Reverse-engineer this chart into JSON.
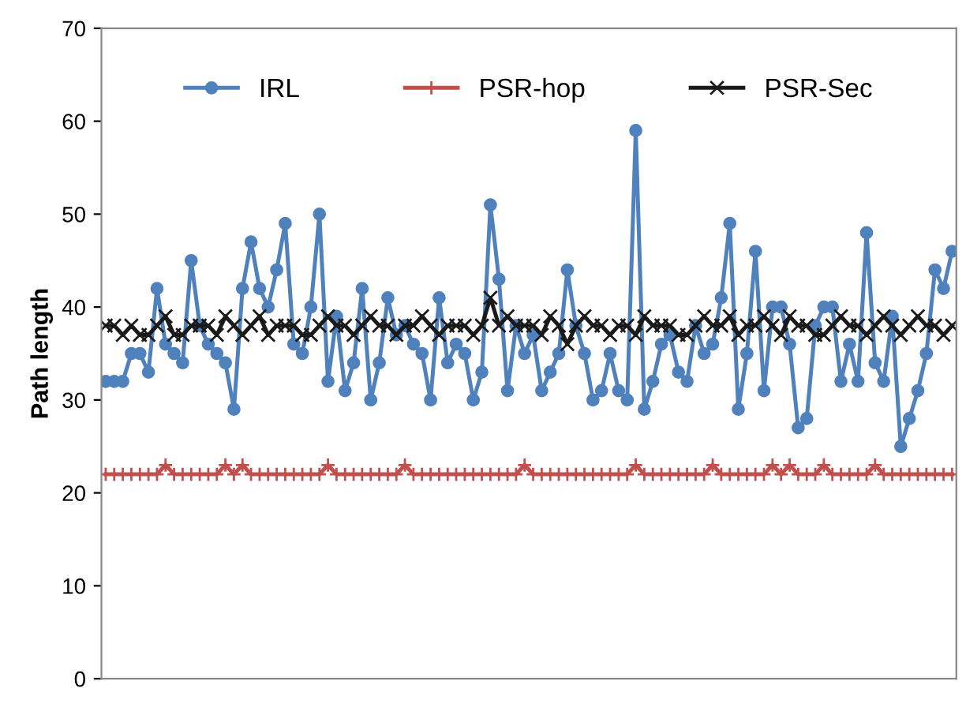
{
  "chart_data": {
    "type": "line",
    "ylabel": "Path length",
    "categories": [
      null,
      null,
      null,
      null,
      null,
      null,
      null,
      null,
      null,
      null,
      null,
      null,
      null,
      null,
      null,
      null,
      null,
      null,
      null,
      null,
      null,
      null,
      null,
      null,
      null,
      null,
      null,
      null,
      null,
      null,
      null,
      null,
      null,
      null,
      null,
      null,
      null,
      null,
      null,
      null,
      null,
      null,
      null,
      null,
      null,
      null,
      null,
      null,
      null,
      null,
      null,
      null,
      null,
      null,
      null,
      null,
      null,
      null,
      null,
      null,
      null,
      null,
      null,
      null,
      null,
      null,
      null,
      null,
      null,
      null,
      null,
      null,
      null,
      null,
      null,
      null,
      null,
      null,
      null,
      null,
      null,
      null,
      null,
      null,
      null,
      null,
      null,
      null,
      null,
      null,
      null,
      null,
      null,
      null,
      null,
      null,
      null,
      null,
      null,
      null
    ],
    "series": [
      {
        "name": "IRL",
        "color": "#4f81bd",
        "marker": "circle",
        "values": [
          32,
          32,
          32,
          35,
          35,
          33,
          42,
          36,
          35,
          34,
          45,
          38,
          36,
          35,
          34,
          29,
          42,
          47,
          42,
          40,
          44,
          49,
          36,
          35,
          40,
          50,
          32,
          39,
          31,
          34,
          42,
          30,
          34,
          41,
          37,
          38,
          36,
          35,
          30,
          41,
          34,
          36,
          35,
          30,
          33,
          51,
          43,
          31,
          38,
          35,
          37,
          31,
          33,
          35,
          44,
          38,
          35,
          30,
          31,
          35,
          31,
          30,
          59,
          29,
          32,
          36,
          37,
          33,
          32,
          38,
          35,
          36,
          41,
          49,
          29,
          35,
          46,
          31,
          40,
          40,
          36,
          27,
          28,
          38,
          40,
          40,
          32,
          36,
          32,
          48,
          34,
          32,
          39,
          25,
          28,
          31,
          35,
          44,
          42,
          46
        ]
      },
      {
        "name": "PSR-hop",
        "color": "#c0504d",
        "marker": "cross",
        "values": [
          22,
          22,
          22,
          22,
          22,
          22,
          22,
          23,
          22,
          22,
          22,
          22,
          22,
          22,
          23,
          22,
          23,
          22,
          22,
          22,
          22,
          22,
          22,
          22,
          22,
          22,
          23,
          22,
          22,
          22,
          22,
          22,
          22,
          22,
          22,
          23,
          22,
          22,
          22,
          22,
          22,
          22,
          22,
          22,
          22,
          22,
          22,
          22,
          22,
          23,
          22,
          22,
          22,
          22,
          22,
          22,
          22,
          22,
          22,
          22,
          22,
          22,
          23,
          22,
          22,
          22,
          22,
          22,
          22,
          22,
          22,
          23,
          22,
          22,
          22,
          22,
          22,
          22,
          23,
          22,
          23,
          22,
          22,
          22,
          23,
          22,
          22,
          22,
          22,
          22,
          23,
          22,
          22,
          22,
          22,
          22,
          22,
          22,
          22,
          22
        ]
      },
      {
        "name": "PSR-Sec",
        "color": "#1a1a1a",
        "marker": "cross",
        "values": [
          38,
          38,
          37,
          38,
          37,
          37,
          38,
          39,
          37,
          37,
          38,
          38,
          38,
          37,
          39,
          38,
          37,
          38,
          39,
          37,
          38,
          38,
          38,
          37,
          37,
          38,
          39,
          38,
          38,
          37,
          38,
          39,
          38,
          38,
          37,
          38,
          38,
          39,
          38,
          37,
          38,
          38,
          38,
          37,
          38,
          41,
          38,
          39,
          38,
          38,
          38,
          37,
          39,
          38,
          36,
          38,
          39,
          38,
          38,
          37,
          38,
          38,
          37,
          39,
          38,
          38,
          38,
          37,
          37,
          38,
          39,
          38,
          38,
          39,
          37,
          38,
          38,
          39,
          38,
          37,
          39,
          38,
          38,
          37,
          37,
          38,
          39,
          38,
          38,
          37,
          38,
          39,
          38,
          37,
          38,
          39,
          38,
          38,
          37,
          38
        ]
      }
    ],
    "ylim": [
      0,
      70
    ],
    "yticks": [
      0,
      10,
      20,
      30,
      40,
      50,
      60,
      70
    ],
    "grid": false,
    "legend": "top"
  }
}
